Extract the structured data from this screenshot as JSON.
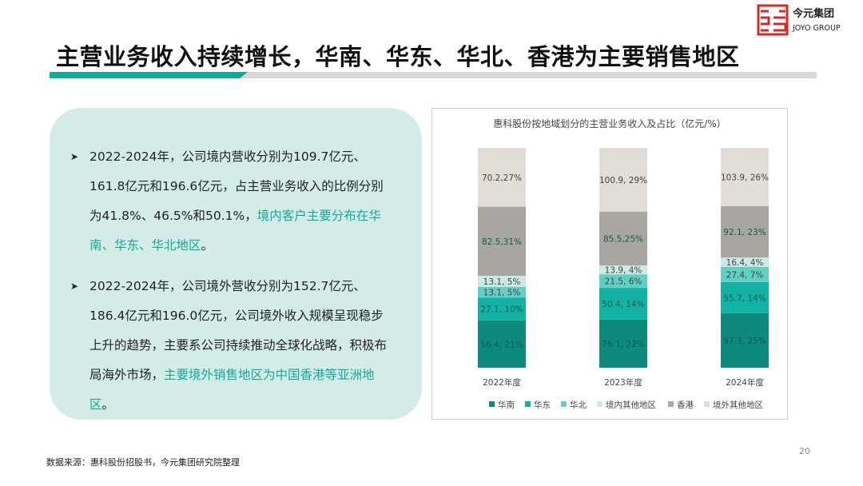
{
  "header": {
    "title": "主营业务收入持续增长，华南、华东、华北、香港为主要销售地区",
    "logo_name": "今元集团",
    "logo_sub": "JOYO GROUP"
  },
  "bullets": [
    {
      "before": "2022-2024年，公司境内营收分别为109.7亿元、161.8亿元和196.6亿元，占主营业务收入的比例分别为41.8%、46.5%和50.1%，",
      "highlight": "境内客户主要分布在华南、华东、华北地区",
      "after": "。"
    },
    {
      "before": "2022-2024年，公司境外营收分别为152.7亿元、186.4亿元和196.0亿元，公司境外收入规模呈现稳步上升的趋势，主要系公司持续推动全球化战略，积极布局海外市场，",
      "highlight": "主要境外销售地区为中国香港等亚洲地区",
      "after": "。"
    }
  ],
  "chart_data": {
    "type": "bar",
    "stacked": "percent",
    "title": "惠科股份按地域划分的主营业务收入及占比（亿元/%）",
    "categories": [
      "2022年度",
      "2023年度",
      "2024年度"
    ],
    "legend": "bottom",
    "series": [
      {
        "name": "华南",
        "color": "#0e8a7d",
        "values": [
          56.4,
          76.1,
          97.3
        ],
        "value_labels": [
          "56.4, 21%",
          "76.1, 22%",
          "97.3, 25%"
        ]
      },
      {
        "name": "华东",
        "color": "#14b2a4",
        "values": [
          27.1,
          50.4,
          55.7
        ],
        "value_labels": [
          "27.1, 10%",
          "50.4, 14%",
          "55.7, 14%"
        ]
      },
      {
        "name": "华北",
        "color": "#62cfc4",
        "values": [
          13.1,
          21.5,
          27.4
        ],
        "value_labels": [
          "13.1, 5%",
          "21.5, 6%",
          "27.4, 7%"
        ]
      },
      {
        "name": "境内其他地区",
        "color": "#cbe9e5",
        "values": [
          13.1,
          13.9,
          16.4
        ],
        "value_labels": [
          "13.1, 5%",
          "13.9, 4%",
          "16.4, 4%"
        ]
      },
      {
        "name": "香港",
        "color": "#a9a5a1",
        "values": [
          82.5,
          85.5,
          92.1
        ],
        "value_labels": [
          "82.5,31%",
          "85.5,25%",
          "92.1, 23%"
        ]
      },
      {
        "name": "境外其他地区",
        "color": "#e3ddd8",
        "values": [
          70.2,
          100.9,
          103.9
        ],
        "value_labels": [
          "70.2,27%",
          "100.9, 29%",
          "103.9, 26%"
        ]
      }
    ]
  },
  "footer": {
    "source": "数据来源：惠科股份招股书，今元集团研究院整理",
    "page": "20"
  }
}
